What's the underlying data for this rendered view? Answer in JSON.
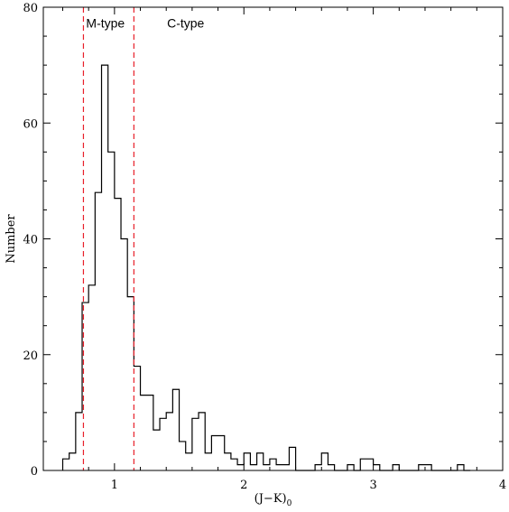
{
  "chart_data": {
    "type": "histogram",
    "xlabel_main": "(J−K)",
    "xlabel_sub": "0",
    "ylabel": "Number",
    "xlim": [
      0.45,
      4.0
    ],
    "ylim": [
      0,
      80
    ],
    "xticks": [
      1,
      2,
      3,
      4
    ],
    "yticks": [
      0,
      20,
      40,
      60,
      80
    ],
    "bin_width": 0.05,
    "bins_start": [
      0.6,
      0.65,
      0.7,
      0.75,
      0.8,
      0.85,
      0.9,
      0.95,
      1.0,
      1.05,
      1.1,
      1.15,
      1.2,
      1.25,
      1.3,
      1.35,
      1.4,
      1.45,
      1.5,
      1.55,
      1.6,
      1.65,
      1.7,
      1.75,
      1.8,
      1.85,
      1.9,
      1.95,
      2.0,
      2.05,
      2.1,
      2.15,
      2.2,
      2.25,
      2.3,
      2.35,
      2.4,
      2.45,
      2.5,
      2.55,
      2.6,
      2.65,
      2.7,
      2.75,
      2.8,
      2.85,
      2.9,
      2.95,
      3.0,
      3.05,
      3.1,
      3.15,
      3.2,
      3.25,
      3.3,
      3.35,
      3.4,
      3.45,
      3.5,
      3.55,
      3.6,
      3.65,
      3.7
    ],
    "counts": [
      2,
      3,
      10,
      29,
      32,
      48,
      70,
      55,
      47,
      40,
      30,
      18,
      13,
      13,
      7,
      9,
      10,
      14,
      5,
      3,
      9,
      10,
      3,
      6,
      6,
      3,
      2,
      1,
      3,
      1,
      3,
      1,
      2,
      1,
      1,
      4,
      0,
      0,
      0,
      1,
      3,
      1,
      0,
      0,
      1,
      0,
      2,
      2,
      1,
      0,
      0,
      1,
      0,
      0,
      0,
      1,
      1,
      0,
      0,
      0,
      0,
      1,
      0
    ],
    "vlines": [
      {
        "x": 0.76,
        "color": "#e8202a"
      },
      {
        "x": 1.15,
        "color": "#e8202a"
      }
    ],
    "annotations": [
      {
        "text": "M-type",
        "x": 0.93,
        "y": 76.5
      },
      {
        "text": "C-type",
        "x": 1.55,
        "y": 76.5
      }
    ],
    "grid": false
  }
}
